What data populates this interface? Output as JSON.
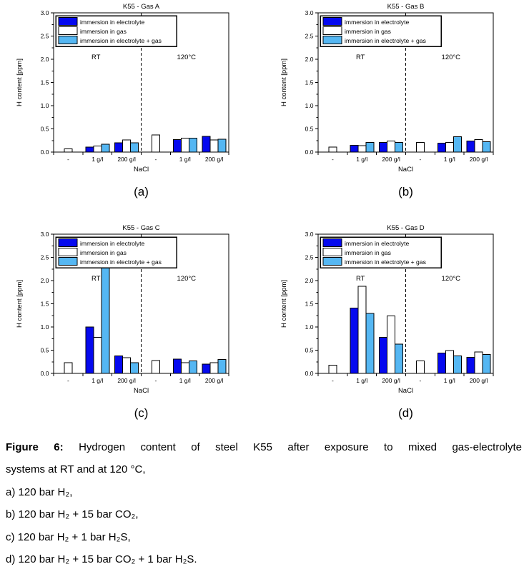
{
  "figure": {
    "panel_labels": [
      "(a)",
      "(b)",
      "(c)",
      "(d)"
    ]
  },
  "caption": {
    "title_bold": "Figure 6:",
    "title_rest": " Hydrogen content of steel K55 after exposure to mixed gas-electrolyte",
    "line2": "systems at RT and at 120 °C,",
    "items": [
      "a) 120 bar H₂,",
      "b) 120 bar H₂ + 15 bar CO₂,",
      "c) 120 bar H₂ + 1 bar H₂S,",
      "d) 120 bar H₂ + 15 bar CO₂ + 1 bar H₂S."
    ]
  },
  "colors": {
    "electrolyte": "#0509ef",
    "gas": "#ffffff",
    "electrolyte_gas": "#55b7f3",
    "axis": "#000000"
  },
  "chart_data": [
    {
      "type": "bar",
      "title": "K55 - Gas A",
      "ylabel": "H content [ppm]",
      "xlabel": "NaCl",
      "ylim": [
        0,
        3.0
      ],
      "ytick_step": 0.5,
      "ytick_minor": 0.25,
      "grid": false,
      "legend_position": "top-left",
      "categories": [
        "-",
        "1 g/l",
        "200 g/l",
        "-",
        "1 g/l",
        "200 g/l"
      ],
      "divider_after": 3,
      "section_labels": [
        "RT",
        "120°C"
      ],
      "series": [
        {
          "name": "immersion in electrolyte",
          "color": "#0509ef",
          "values": [
            null,
            0.11,
            0.2,
            null,
            0.27,
            0.34
          ]
        },
        {
          "name": "immersion in gas",
          "color": "#ffffff",
          "values": [
            0.07,
            0.13,
            0.26,
            0.37,
            0.3,
            0.26
          ]
        },
        {
          "name": "immersion in electrolyte + gas",
          "color": "#55b7f3",
          "values": [
            null,
            0.17,
            0.2,
            null,
            0.3,
            0.28
          ]
        }
      ]
    },
    {
      "type": "bar",
      "title": "K55 - Gas B",
      "ylabel": "H content [ppm]",
      "xlabel": "NaCl",
      "ylim": [
        0,
        3.0
      ],
      "ytick_step": 0.5,
      "ytick_minor": 0.25,
      "grid": false,
      "legend_position": "top-left",
      "categories": [
        "-",
        "1 g/l",
        "200 g/l",
        "-",
        "1 g/l",
        "200 g/l"
      ],
      "divider_after": 3,
      "section_labels": [
        "RT",
        "120°C"
      ],
      "series": [
        {
          "name": "immersion in electrolyte",
          "color": "#0509ef",
          "values": [
            null,
            0.15,
            0.21,
            null,
            0.19,
            0.24
          ]
        },
        {
          "name": "immersion in gas",
          "color": "#ffffff",
          "values": [
            0.11,
            0.14,
            0.24,
            0.21,
            0.21,
            0.27
          ]
        },
        {
          "name": "immersion in electrolyte + gas",
          "color": "#55b7f3",
          "values": [
            null,
            0.21,
            0.21,
            null,
            0.33,
            0.22
          ]
        }
      ]
    },
    {
      "type": "bar",
      "title": "K55 - Gas C",
      "ylabel": "H content [ppm]",
      "xlabel": "NaCl",
      "ylim": [
        0,
        3.0
      ],
      "ytick_step": 0.5,
      "ytick_minor": 0.25,
      "grid": false,
      "legend_position": "top-left",
      "categories": [
        "-",
        "1 g/l",
        "200 g/l",
        "-",
        "1 g/l",
        "200 g/l"
      ],
      "divider_after": 3,
      "section_labels": [
        "RT",
        "120°C"
      ],
      "series": [
        {
          "name": "immersion in electrolyte",
          "color": "#0509ef",
          "values": [
            null,
            1.0,
            0.38,
            null,
            0.31,
            0.2
          ]
        },
        {
          "name": "immersion in gas",
          "color": "#ffffff",
          "values": [
            0.23,
            0.78,
            0.34,
            0.28,
            0.23,
            0.23
          ]
        },
        {
          "name": "immersion in electrolyte + gas",
          "color": "#55b7f3",
          "values": [
            null,
            2.33,
            0.23,
            null,
            0.27,
            0.3
          ]
        }
      ]
    },
    {
      "type": "bar",
      "title": "K55 - Gas D",
      "ylabel": "H content [ppm]",
      "xlabel": "NaCl",
      "ylim": [
        0,
        3.0
      ],
      "ytick_step": 0.5,
      "ytick_minor": 0.25,
      "grid": false,
      "legend_position": "top-left",
      "categories": [
        "-",
        "1 g/l",
        "200 g/l",
        "-",
        "1 g/l",
        "200 g/l"
      ],
      "divider_after": 3,
      "section_labels": [
        "RT",
        "120°C"
      ],
      "series": [
        {
          "name": "immersion in electrolyte",
          "color": "#0509ef",
          "values": [
            null,
            1.41,
            0.78,
            null,
            0.44,
            0.35
          ]
        },
        {
          "name": "immersion in gas",
          "color": "#ffffff",
          "values": [
            0.18,
            1.88,
            1.24,
            0.27,
            0.49,
            0.46
          ]
        },
        {
          "name": "immersion in electrolyte + gas",
          "color": "#55b7f3",
          "values": [
            null,
            1.29,
            0.63,
            null,
            0.38,
            0.41
          ]
        }
      ]
    }
  ]
}
